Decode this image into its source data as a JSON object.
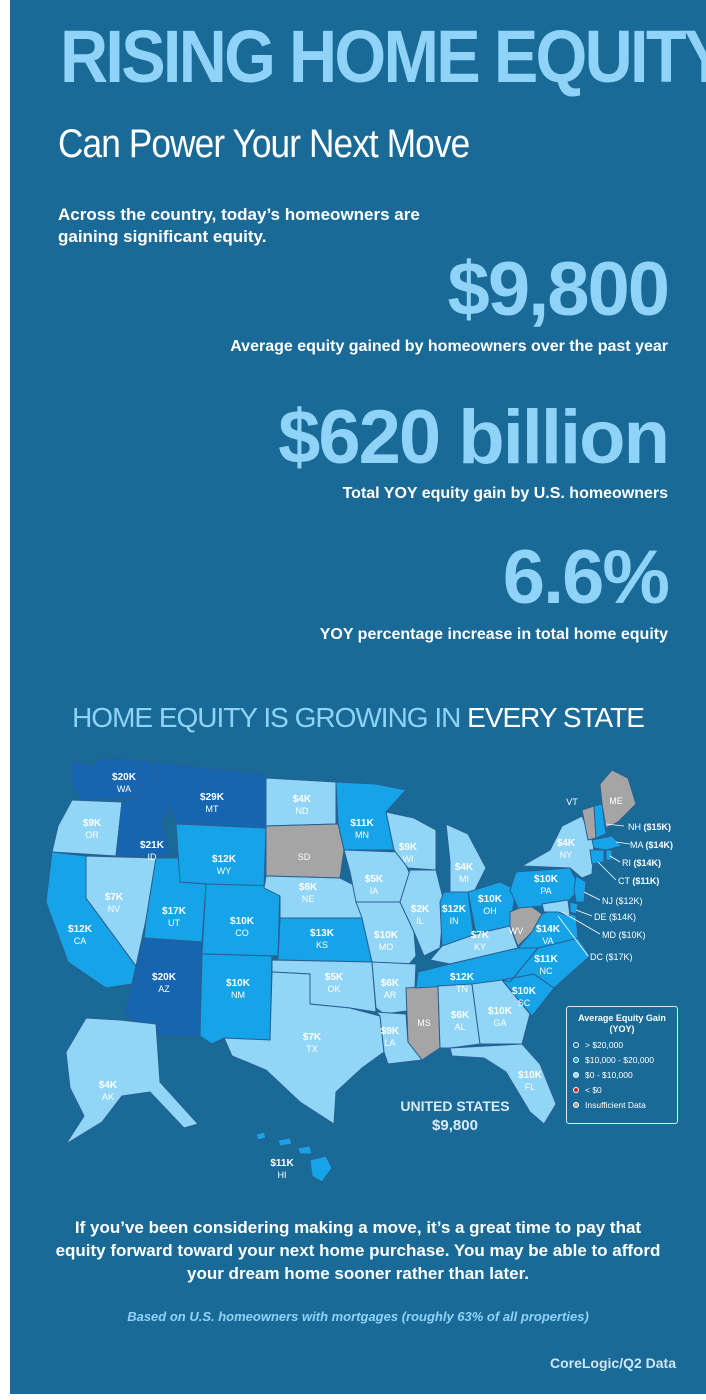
{
  "header": {
    "title": "RISING HOME EQUITY",
    "subtitle": "Can Power Your Next Move",
    "intro": "Across the country, today’s homeowners are gaining significant equity."
  },
  "stats": [
    {
      "value": "$9,800",
      "label": "Average equity gained by homeowners over the past year"
    },
    {
      "value": "$620 billion",
      "label": "Total YOY equity gain by U.S. homeowners"
    },
    {
      "value": "6.6%",
      "label": "YOY percentage increase in total home equity"
    }
  ],
  "map": {
    "heading_part1": "HOME EQUITY IS GROWING IN",
    "heading_part2": "EVERY STATE",
    "us_label": "UNITED STATES",
    "us_value": "$9,800",
    "colors": {
      "over_20k": "#1565b0",
      "mid": "#16a4e8",
      "low": "#92d6f7",
      "negative": "#e41e26",
      "insufficient": "#a5a5a5",
      "border": "#2a5f93"
    },
    "states": [
      {
        "abbr": "WA",
        "value": "$20K"
      },
      {
        "abbr": "MT",
        "value": "$29K"
      },
      {
        "abbr": "ND",
        "value": "$4K"
      },
      {
        "abbr": "MN",
        "value": "$11K"
      },
      {
        "abbr": "OR",
        "value": "$9K"
      },
      {
        "abbr": "ID",
        "value": "$21K"
      },
      {
        "abbr": "WY",
        "value": "$12K"
      },
      {
        "abbr": "SD",
        "value": ""
      },
      {
        "abbr": "WI",
        "value": "$9K"
      },
      {
        "abbr": "MI",
        "value": "$4K"
      },
      {
        "abbr": "NY",
        "value": "$4K"
      },
      {
        "abbr": "NV",
        "value": "$7K"
      },
      {
        "abbr": "NE",
        "value": "$8K"
      },
      {
        "abbr": "IA",
        "value": "$5K"
      },
      {
        "abbr": "CA",
        "value": "$12K"
      },
      {
        "abbr": "UT",
        "value": "$17K"
      },
      {
        "abbr": "CO",
        "value": "$10K"
      },
      {
        "abbr": "KS",
        "value": "$13K"
      },
      {
        "abbr": "MO",
        "value": "$10K"
      },
      {
        "abbr": "IL",
        "value": "$2K"
      },
      {
        "abbr": "IN",
        "value": "$12K"
      },
      {
        "abbr": "OH",
        "value": "$10K"
      },
      {
        "abbr": "PA",
        "value": "$10K"
      },
      {
        "abbr": "WV",
        "value": ""
      },
      {
        "abbr": "VA",
        "value": "$14K"
      },
      {
        "abbr": "KY",
        "value": "$7K"
      },
      {
        "abbr": "AZ",
        "value": "$20K"
      },
      {
        "abbr": "NM",
        "value": "$10K"
      },
      {
        "abbr": "OK",
        "value": "$5K"
      },
      {
        "abbr": "AR",
        "value": "$6K"
      },
      {
        "abbr": "TN",
        "value": "$12K"
      },
      {
        "abbr": "NC",
        "value": "$11K"
      },
      {
        "abbr": "SC",
        "value": "$10K"
      },
      {
        "abbr": "TX",
        "value": "$7K"
      },
      {
        "abbr": "LA",
        "value": "$9K"
      },
      {
        "abbr": "MS",
        "value": ""
      },
      {
        "abbr": "AL",
        "value": "$6K"
      },
      {
        "abbr": "GA",
        "value": "$10K"
      },
      {
        "abbr": "FL",
        "value": "$10K"
      },
      {
        "abbr": "AK",
        "value": "$4K"
      },
      {
        "abbr": "HI",
        "value": "$11K"
      }
    ],
    "small_states": {
      "vt": "VT",
      "me": "ME",
      "nh_abbr": "NH",
      "nh_value": "($15K)",
      "ma_abbr": "MA",
      "ma_value": "($14K)",
      "ri_abbr": "RI",
      "ri_value": "($14K)",
      "ct_abbr": "CT",
      "ct_value": "($11K)",
      "nj": "NJ ($12K)",
      "de": "DE ($14K)",
      "md": "MD ($10K)",
      "dc": "DC ($17K)"
    },
    "legend": {
      "title": "Average Equity Gain (YOY)",
      "items": [
        "> $20,000",
        "$10,000 - $20,000",
        "$0 - $10,000",
        "< $0",
        "Insufficient Data"
      ]
    }
  },
  "closing": "If you’ve been considering making a move, it’s a great time to pay that equity forward toward your next home purchase. You may be able to afford your dream home sooner rather than later.",
  "footnote": "Based on U.S. homeowners with mortgages (roughly 63% of all properties)",
  "source": "CoreLogic/Q2 Data"
}
